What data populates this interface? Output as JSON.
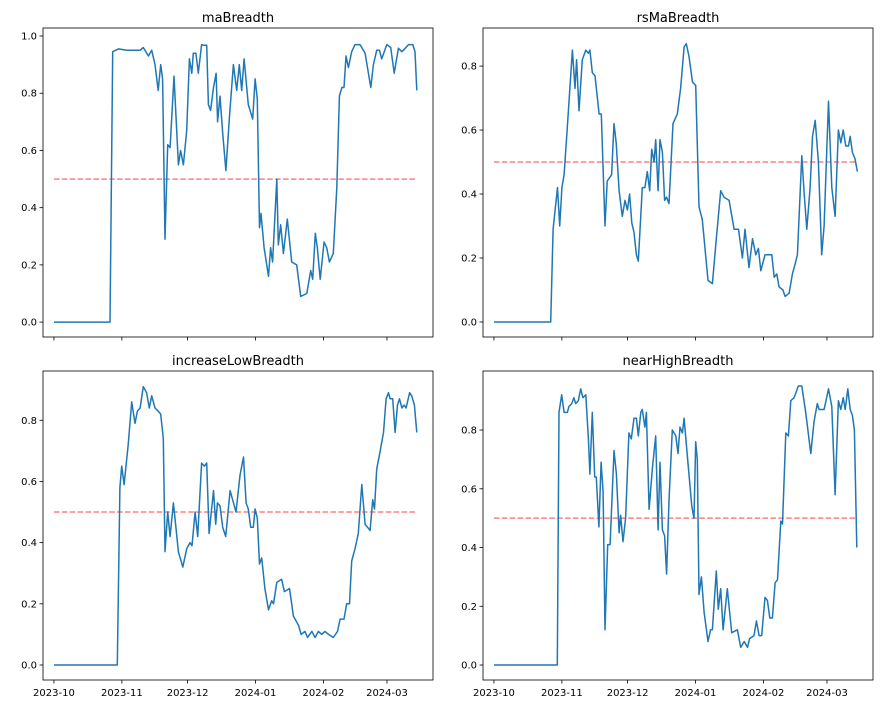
{
  "chart_data": [
    {
      "type": "line",
      "title": "maBreadth",
      "x_unit": "days since 2023-10-01",
      "xlim": [
        -5,
        173
      ],
      "ylim": [
        -0.052,
        1.028
      ],
      "yticks": [
        "0.0",
        "0.2",
        "0.4",
        "0.6",
        "0.8",
        "1.0"
      ],
      "xticks": [],
      "threshold": 0.5,
      "series": [
        {
          "name": "maBreadth",
          "color": "#1f77b4",
          "x": [
            0,
            25.6,
            26.8,
            29.4,
            33.2,
            39.3,
            40.8,
            43.1,
            44.6,
            46.1,
            47.6,
            48.7,
            49.6,
            50.7,
            51.9,
            53,
            54.8,
            56.8,
            57.8,
            59.1,
            60.6,
            61.8,
            62.9,
            63.6,
            64.8,
            65.9,
            67.4,
            68.2,
            69.7,
            70.5,
            71.5,
            72.8,
            74,
            74.7,
            75.8,
            77,
            78.5,
            80.1,
            81.9,
            83.4,
            84.6,
            85.7,
            86.8,
            88.7,
            90.7,
            91.8,
            92.8,
            93.8,
            94.5,
            95.9,
            97.9,
            98.9,
            99.8,
            101.7,
            102.4,
            103.5,
            104.7,
            106.5,
            108.5,
            110.8,
            112.6,
            115.4,
            117.2,
            118.1,
            119.3,
            120.2,
            121.5,
            123.3,
            124.5,
            125.7,
            127.5,
            129.1,
            130.3,
            131.4,
            132.4,
            133.3,
            134.4,
            135.9,
            137.4,
            139.7,
            142,
            144.6,
            145.8,
            147.3,
            148.6,
            149.6,
            151.9,
            153.7,
            155.3,
            157.2,
            158.8,
            160.3,
            161.8,
            163.8,
            164.8,
            165.6
          ],
          "y": [
            0,
            0,
            0.945,
            0.955,
            0.95,
            0.95,
            0.96,
            0.93,
            0.95,
            0.9,
            0.81,
            0.9,
            0.85,
            0.29,
            0.62,
            0.61,
            0.86,
            0.55,
            0.6,
            0.55,
            0.67,
            0.92,
            0.87,
            0.94,
            0.94,
            0.87,
            0.97,
            0.968,
            0.968,
            0.76,
            0.74,
            0.82,
            0.87,
            0.7,
            0.79,
            0.66,
            0.53,
            0.72,
            0.9,
            0.81,
            0.9,
            0.81,
            0.92,
            0.76,
            0.71,
            0.85,
            0.78,
            0.33,
            0.38,
            0.26,
            0.16,
            0.26,
            0.21,
            0.5,
            0.27,
            0.34,
            0.24,
            0.36,
            0.21,
            0.2,
            0.09,
            0.1,
            0.18,
            0.15,
            0.31,
            0.26,
            0.15,
            0.28,
            0.26,
            0.21,
            0.24,
            0.47,
            0.79,
            0.82,
            0.82,
            0.93,
            0.89,
            0.945,
            0.97,
            0.97,
            0.94,
            0.82,
            0.9,
            0.95,
            0.95,
            0.92,
            0.97,
            0.96,
            0.87,
            0.957,
            0.945,
            0.957,
            0.97,
            0.97,
            0.945,
            0.81
          ]
        }
      ]
    },
    {
      "type": "line",
      "title": "rsMaBreadth",
      "x_unit": "days since 2023-10-01",
      "xlim": [
        -5,
        173
      ],
      "ylim": [
        -0.047,
        0.919
      ],
      "yticks": [
        "0.0",
        "0.2",
        "0.4",
        "0.6",
        "0.8"
      ],
      "xticks": [],
      "threshold": 0.5,
      "series": [
        {
          "name": "rsMaBreadth",
          "color": "#1f77b4",
          "x": [
            0,
            25.9,
            27,
            29,
            30,
            31,
            32,
            33.9,
            35.8,
            37,
            37.7,
            38.8,
            40.3,
            41.9,
            43.1,
            43.8,
            44.9,
            46.1,
            48,
            49,
            50.7,
            51.7,
            53.7,
            54.8,
            55.8,
            57.1,
            58.6,
            59.8,
            60.9,
            61.9,
            62.9,
            63.9,
            65,
            65.9,
            67.7,
            68.9,
            70,
            71.1,
            72,
            73.1,
            73.8,
            74.9,
            75.8,
            76.9,
            77.9,
            78.8,
            79.9,
            81.7,
            83.7,
            85.2,
            86.8,
            87.8,
            89,
            90.6,
            92.1,
            93.6,
            95.1,
            97.7,
            99.7,
            101.5,
            103.5,
            105,
            107.3,
            109.6,
            111.6,
            113.4,
            114.6,
            116.4,
            118,
            119.5,
            120.7,
            121.8,
            123.7,
            126.8,
            127.9,
            129.1,
            130.1,
            131.9,
            132.9,
            134.7,
            136.2,
            137.4,
            138.5,
            140.5,
            141.6,
            142.8,
            144.3,
            145.4,
            146.6,
            148.1,
            149.6,
            150.7,
            152.7,
            154.2,
            155.7,
            157.2,
            158.3,
            159.4,
            160.6,
            161.8,
            162.6,
            163.6,
            164.8,
            165.9
          ],
          "y": [
            0,
            0,
            0.29,
            0.42,
            0.3,
            0.42,
            0.46,
            0.65,
            0.85,
            0.73,
            0.82,
            0.66,
            0.82,
            0.85,
            0.84,
            0.85,
            0.78,
            0.77,
            0.65,
            0.65,
            0.3,
            0.44,
            0.46,
            0.62,
            0.56,
            0.41,
            0.33,
            0.38,
            0.35,
            0.4,
            0.31,
            0.28,
            0.21,
            0.19,
            0.42,
            0.42,
            0.47,
            0.41,
            0.54,
            0.5,
            0.57,
            0.41,
            0.57,
            0.53,
            0.38,
            0.39,
            0.37,
            0.62,
            0.65,
            0.73,
            0.86,
            0.87,
            0.83,
            0.75,
            0.74,
            0.36,
            0.32,
            0.13,
            0.12,
            0.26,
            0.41,
            0.39,
            0.38,
            0.29,
            0.29,
            0.2,
            0.29,
            0.17,
            0.26,
            0.21,
            0.23,
            0.16,
            0.21,
            0.21,
            0.14,
            0.15,
            0.11,
            0.1,
            0.08,
            0.09,
            0.15,
            0.18,
            0.21,
            0.52,
            0.4,
            0.29,
            0.42,
            0.58,
            0.63,
            0.5,
            0.21,
            0.3,
            0.69,
            0.42,
            0.33,
            0.6,
            0.56,
            0.6,
            0.55,
            0.55,
            0.58,
            0.53,
            0.51,
            0.47
          ]
        }
      ]
    },
    {
      "type": "line",
      "title": "increaseLowBreadth",
      "x_unit": "days since 2023-10-01",
      "xlim": [
        -5,
        173
      ],
      "ylim": [
        -0.049,
        0.961
      ],
      "yticks": [
        "0.0",
        "0.2",
        "0.4",
        "0.6",
        "0.8"
      ],
      "xticks": [
        "2023-10",
        "2023-11",
        "2023-12",
        "2024-01",
        "2024-02",
        "2024-03"
      ],
      "xtick_days": [
        0,
        31,
        61,
        92,
        123,
        152
      ],
      "threshold": 0.5,
      "series": [
        {
          "name": "increaseLowBreadth",
          "color": "#1f77b4",
          "x": [
            0,
            28.9,
            30.1,
            30.9,
            32,
            33.9,
            35.5,
            37,
            38.1,
            39.3,
            40.8,
            42.3,
            43.5,
            44.6,
            46.1,
            47.6,
            48.7,
            49.9,
            50.7,
            51.9,
            53,
            54.5,
            56.8,
            58.8,
            60.6,
            62.1,
            63,
            64.4,
            65.6,
            67.4,
            68.6,
            69.7,
            70.8,
            72.8,
            73.8,
            74.6,
            75.8,
            77,
            78.4,
            80.4,
            83.1,
            84.9,
            86.5,
            87.7,
            88.7,
            89.8,
            91,
            91.8,
            92.8,
            93.8,
            94.8,
            96.3,
            97.9,
            99.4,
            100.2,
            101.7,
            103.9,
            105.2,
            107.5,
            109.3,
            111.6,
            112.8,
            114.6,
            115.7,
            117.7,
            119.2,
            120.7,
            122.2,
            123.7,
            125.3,
            127.5,
            129.4,
            130.6,
            132.4,
            133.6,
            134.9,
            135.9,
            137.4,
            138.9,
            140.5,
            142,
            144.3,
            145.5,
            146.3,
            147.3,
            148.9,
            150.4,
            151.6,
            152.7,
            153.4,
            154.6,
            155.7,
            156.8,
            157.7,
            158.8,
            159.8,
            160.7,
            162.3,
            163.3,
            164.5,
            165.6
          ],
          "y": [
            0,
            0,
            0.58,
            0.65,
            0.59,
            0.72,
            0.86,
            0.79,
            0.83,
            0.84,
            0.91,
            0.89,
            0.84,
            0.88,
            0.84,
            0.83,
            0.82,
            0.74,
            0.37,
            0.5,
            0.42,
            0.53,
            0.37,
            0.32,
            0.38,
            0.4,
            0.39,
            0.5,
            0.42,
            0.66,
            0.65,
            0.66,
            0.43,
            0.57,
            0.46,
            0.53,
            0.52,
            0.45,
            0.42,
            0.57,
            0.5,
            0.62,
            0.68,
            0.53,
            0.51,
            0.45,
            0.45,
            0.51,
            0.48,
            0.33,
            0.35,
            0.25,
            0.18,
            0.21,
            0.2,
            0.27,
            0.28,
            0.24,
            0.25,
            0.16,
            0.13,
            0.1,
            0.11,
            0.09,
            0.11,
            0.09,
            0.11,
            0.1,
            0.11,
            0.1,
            0.09,
            0.11,
            0.15,
            0.15,
            0.2,
            0.2,
            0.34,
            0.38,
            0.43,
            0.59,
            0.46,
            0.44,
            0.54,
            0.51,
            0.64,
            0.7,
            0.76,
            0.87,
            0.89,
            0.87,
            0.87,
            0.76,
            0.85,
            0.87,
            0.84,
            0.85,
            0.84,
            0.89,
            0.88,
            0.85,
            0.76
          ]
        }
      ]
    },
    {
      "type": "line",
      "title": "nearHighBreadth",
      "x_unit": "days since 2023-10-01",
      "xlim": [
        -5,
        173
      ],
      "ylim": [
        -0.051,
        1.001
      ],
      "yticks": [
        "0.0",
        "0.2",
        "0.4",
        "0.6",
        "0.8"
      ],
      "xticks": [
        "2023-10",
        "2023-11",
        "2023-12",
        "2024-01",
        "2024-02",
        "2024-03"
      ],
      "xtick_days": [
        0,
        31,
        61,
        92,
        123,
        152
      ],
      "threshold": 0.5,
      "series": [
        {
          "name": "nearHighBreadth",
          "color": "#1f77b4",
          "x": [
            0,
            28.9,
            29.7,
            30.9,
            32,
            33.5,
            34.2,
            35.5,
            36.5,
            37.3,
            38.5,
            39.6,
            40.6,
            41.9,
            43.1,
            43.8,
            44.9,
            46,
            46.7,
            47.9,
            48.9,
            49.8,
            50.7,
            51.9,
            53,
            54.8,
            55.9,
            57.1,
            57.8,
            58.9,
            60.1,
            61.6,
            62.7,
            63.9,
            65,
            65.9,
            67,
            67.7,
            68.9,
            69.6,
            70.8,
            72.3,
            73.8,
            74.9,
            75.8,
            76.9,
            77.9,
            78.8,
            79.9,
            81.4,
            83,
            84,
            84.9,
            86,
            86.8,
            88.3,
            90.3,
            91.3,
            92.1,
            92.8,
            93.6,
            94.7,
            95.9,
            97.7,
            98.9,
            99.7,
            101.5,
            102.4,
            103.5,
            104.6,
            106.5,
            108.5,
            111.1,
            112.6,
            114.2,
            115.7,
            116.7,
            118.7,
            119.8,
            121,
            122.2,
            123.7,
            124.8,
            125.9,
            127.1,
            128.3,
            129.4,
            130.9,
            131.7,
            133.2,
            134.4,
            135.5,
            137,
            138.9,
            140.5,
            142.3,
            144.6,
            146.1,
            147.6,
            148.4,
            150.7,
            152.7,
            154.2,
            155.7,
            157.2,
            158.3,
            159.4,
            160.3,
            161.5,
            162.6,
            163.6,
            164.5,
            165.6
          ],
          "y": [
            0,
            0,
            0.86,
            0.92,
            0.86,
            0.86,
            0.88,
            0.89,
            0.91,
            0.89,
            0.9,
            0.94,
            0.91,
            0.92,
            0.77,
            0.65,
            0.86,
            0.64,
            0.64,
            0.47,
            0.69,
            0.59,
            0.12,
            0.41,
            0.41,
            0.73,
            0.65,
            0.45,
            0.51,
            0.42,
            0.5,
            0.79,
            0.77,
            0.84,
            0.84,
            0.78,
            0.86,
            0.87,
            0.81,
            0.86,
            0.53,
            0.67,
            0.78,
            0.46,
            0.69,
            0.46,
            0.44,
            0.31,
            0.56,
            0.8,
            0.78,
            0.72,
            0.81,
            0.79,
            0.84,
            0.71,
            0.54,
            0.5,
            0.76,
            0.7,
            0.24,
            0.3,
            0.18,
            0.08,
            0.12,
            0.12,
            0.32,
            0.19,
            0.26,
            0.12,
            0.26,
            0.11,
            0.12,
            0.06,
            0.08,
            0.06,
            0.09,
            0.1,
            0.15,
            0.1,
            0.1,
            0.23,
            0.22,
            0.16,
            0.16,
            0.28,
            0.29,
            0.49,
            0.48,
            0.79,
            0.78,
            0.9,
            0.91,
            0.95,
            0.95,
            0.86,
            0.72,
            0.83,
            0.89,
            0.87,
            0.87,
            0.94,
            0.88,
            0.58,
            0.9,
            0.87,
            0.91,
            0.87,
            0.94,
            0.87,
            0.85,
            0.8,
            0.4
          ]
        }
      ]
    }
  ]
}
